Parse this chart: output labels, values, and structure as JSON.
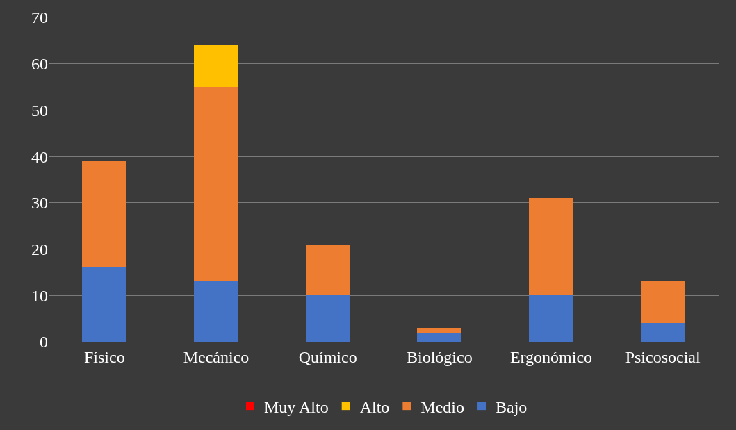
{
  "chart_data": {
    "type": "bar",
    "stacked": true,
    "categories": [
      "Físico",
      "Mecánico",
      "Químico",
      "Biológico",
      "Ergonómico",
      "Psicosocial"
    ],
    "series": [
      {
        "name": "Bajo",
        "color": "#4472c4",
        "values": [
          16,
          13,
          10,
          2,
          10,
          4
        ]
      },
      {
        "name": "Medio",
        "color": "#ed7d31",
        "values": [
          23,
          42,
          11,
          1,
          21,
          9
        ]
      },
      {
        "name": "Alto",
        "color": "#ffc000",
        "values": [
          0,
          9,
          0,
          0,
          0,
          0
        ]
      },
      {
        "name": "Muy Alto",
        "color": "#ff0000",
        "values": [
          0,
          0,
          0,
          0,
          0,
          0
        ]
      }
    ],
    "ylim": [
      0,
      70
    ],
    "yticks": [
      0,
      10,
      20,
      30,
      40,
      50,
      60,
      70
    ],
    "grid": "y",
    "legend": "bottom"
  }
}
